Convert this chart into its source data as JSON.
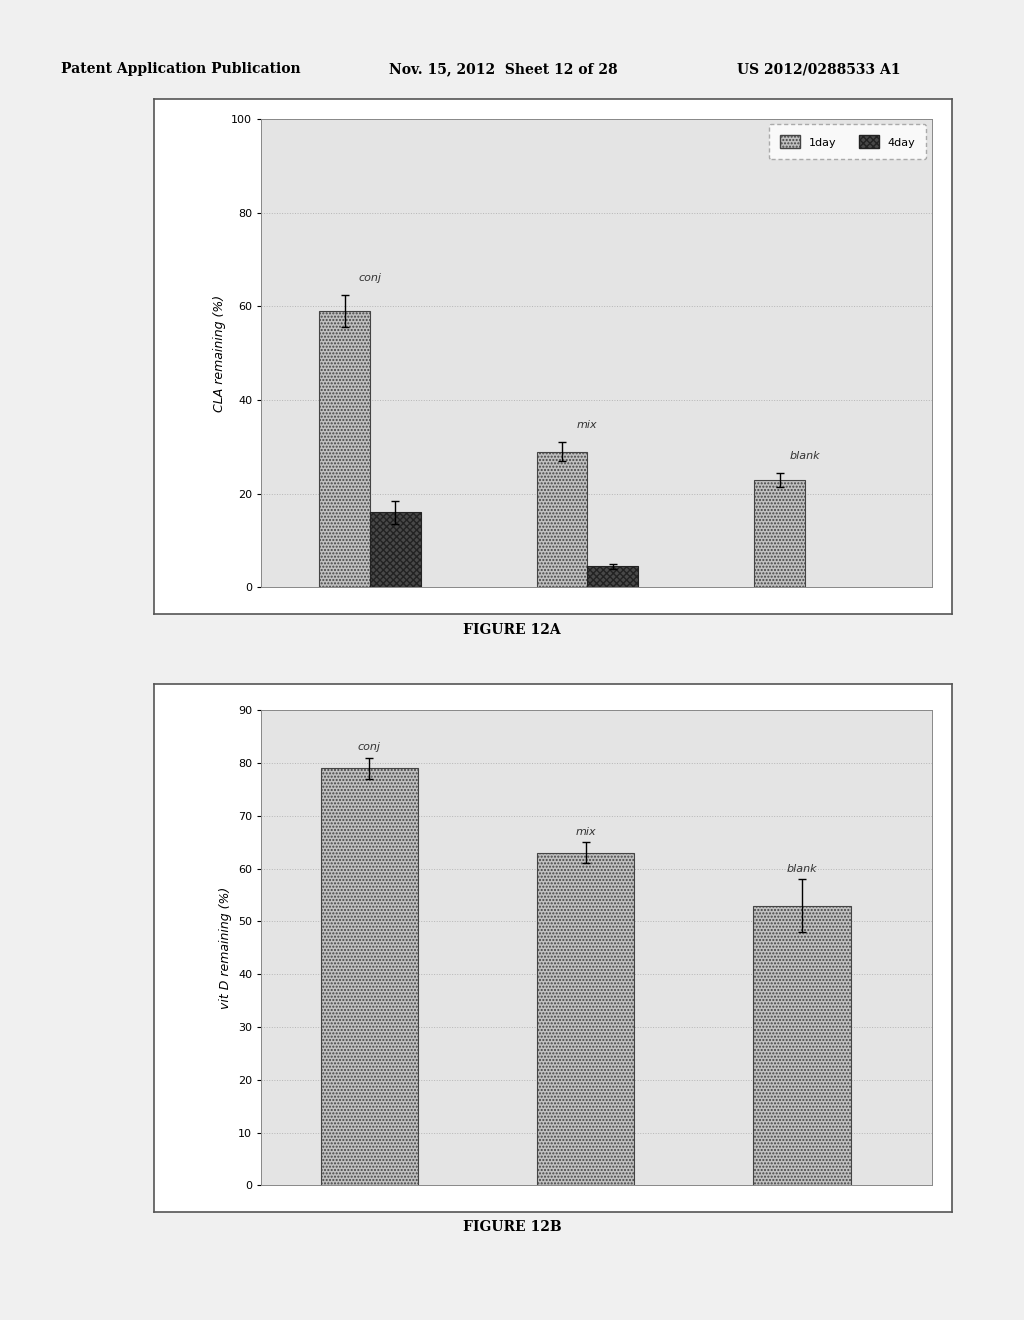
{
  "fig12a": {
    "ylabel": "CLA remaining (%)",
    "ylim": [
      0,
      100
    ],
    "yticks": [
      0,
      20,
      40,
      60,
      80,
      100
    ],
    "groups": [
      "conj",
      "mix",
      "blank"
    ],
    "values_1day": [
      59,
      29,
      23
    ],
    "values_4day": [
      16,
      4.5,
      0
    ],
    "errors_1day": [
      3.5,
      2.0,
      1.5
    ],
    "errors_4day": [
      2.5,
      0.5,
      0
    ],
    "has_4day": [
      true,
      true,
      false
    ],
    "bar_color_1day": "#c0c0c0",
    "bar_color_4day": "#484848",
    "bar_width": 0.28,
    "group_centers": [
      0.9,
      2.1,
      3.3
    ],
    "label_offsets": [
      0,
      0,
      0
    ]
  },
  "fig12b": {
    "ylabel": "vit D remaining (%)",
    "ylim": [
      0,
      90
    ],
    "yticks": [
      0,
      10,
      20,
      30,
      40,
      50,
      60,
      70,
      80,
      90
    ],
    "groups": [
      "conj",
      "mix",
      "blank"
    ],
    "values": [
      79,
      63,
      53
    ],
    "errors": [
      2,
      2,
      5
    ],
    "bar_color": "#c0c0c0",
    "bar_width": 0.45,
    "group_positions": [
      0.7,
      1.7,
      2.7
    ]
  },
  "header_left": "Patent Application Publication",
  "header_mid": "Nov. 15, 2012  Sheet 12 of 28",
  "header_right": "US 2012/0288533 A1",
  "bg_color": "#f0f0f0",
  "plot_bg_color": "#e4e4e4",
  "fig12a_label": "FIGURE 12A",
  "fig12b_label": "FIGURE 12B"
}
